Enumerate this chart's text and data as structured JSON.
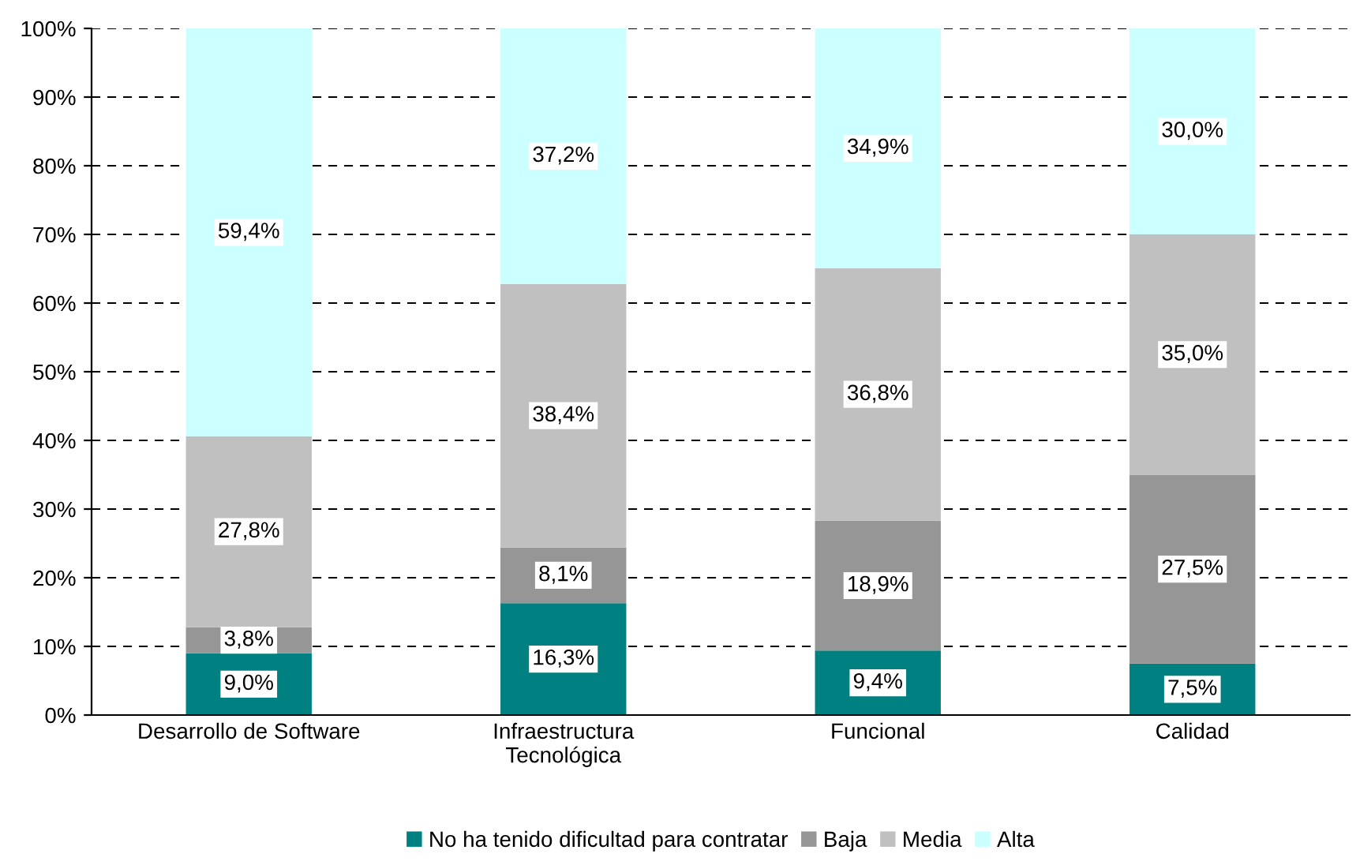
{
  "chart_data": {
    "type": "bar",
    "stacked": true,
    "categories": [
      "Desarrollo de Software",
      "Infraestructura\nTecnológica",
      "Funcional",
      "Calidad"
    ],
    "series": [
      {
        "name": "No ha tenido dificultad para contratar",
        "color": "#008080",
        "values": [
          9.0,
          16.3,
          9.4,
          7.5
        ],
        "value_labels": [
          "9,0%",
          "16,3%",
          "9,4%",
          "7,5%"
        ]
      },
      {
        "name": "Baja",
        "color": "#969696",
        "values": [
          3.8,
          8.1,
          18.9,
          27.5
        ],
        "value_labels": [
          "3,8%",
          "8,1%",
          "18,9%",
          "27,5%"
        ]
      },
      {
        "name": "Media",
        "color": "#c0c0c0",
        "values": [
          27.8,
          38.4,
          36.8,
          35.0
        ],
        "value_labels": [
          "27,8%",
          "38,4%",
          "36,8%",
          "35,0%"
        ]
      },
      {
        "name": "Alta",
        "color": "#ccffff",
        "values": [
          59.4,
          37.2,
          34.9,
          30.0
        ],
        "value_labels": [
          "59,4%",
          "37,2%",
          "34,9%",
          "30,0%"
        ]
      }
    ],
    "ylim": [
      0,
      100
    ],
    "yticks": [
      {
        "value": 0,
        "label": "0%"
      },
      {
        "value": 10,
        "label": "10%"
      },
      {
        "value": 20,
        "label": "20%"
      },
      {
        "value": 30,
        "label": "30%"
      },
      {
        "value": 40,
        "label": "40%"
      },
      {
        "value": 50,
        "label": "50%"
      },
      {
        "value": 60,
        "label": "60%"
      },
      {
        "value": 70,
        "label": "70%"
      },
      {
        "value": 80,
        "label": "80%"
      },
      {
        "value": 90,
        "label": "90%"
      },
      {
        "value": 100,
        "label": "100%"
      }
    ],
    "grid": "y",
    "line_style": "dashed",
    "legend": "bottom"
  }
}
